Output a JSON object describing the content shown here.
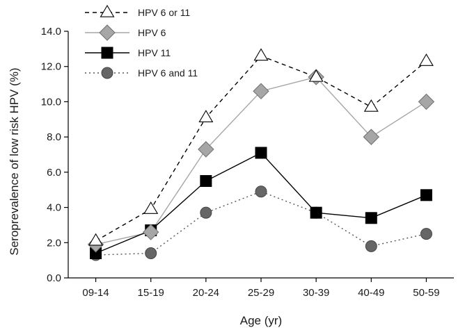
{
  "chart_data": {
    "type": "line",
    "title": "",
    "xlabel": "Age (yr)",
    "ylabel": "Seroprevalence of low risk HPV (%)",
    "categories": [
      "09-14",
      "15-19",
      "20-24",
      "25-29",
      "30-39",
      "40-49",
      "50-59"
    ],
    "ylim": [
      0,
      14
    ],
    "yticks": [
      "0.0",
      "2.0",
      "4.0",
      "6.0",
      "8.0",
      "10.0",
      "12.0",
      "14.0"
    ],
    "grid": false,
    "legend_position": "top-left",
    "series": [
      {
        "name": "HPV 6 or 11",
        "values": [
          2.1,
          3.9,
          9.1,
          12.6,
          11.4,
          9.7,
          12.3
        ],
        "marker": "triangle-open",
        "line_style": "dashed",
        "color": "#000000"
      },
      {
        "name": "HPV 6",
        "values": [
          1.9,
          2.6,
          7.3,
          10.6,
          11.4,
          8.0,
          10.0
        ],
        "marker": "diamond",
        "line_style": "solid",
        "color": "#a6a6a6",
        "marker_fill": "#a6a6a6"
      },
      {
        "name": "HPV 11",
        "values": [
          1.4,
          2.7,
          5.5,
          7.1,
          3.7,
          3.4,
          4.7
        ],
        "marker": "square",
        "line_style": "solid",
        "color": "#000000",
        "marker_fill": "#000000"
      },
      {
        "name": "HPV 6 and 11",
        "values": [
          1.3,
          1.4,
          3.7,
          4.9,
          3.7,
          1.8,
          2.5
        ],
        "marker": "circle",
        "line_style": "dotted",
        "color": "#555555",
        "marker_fill": "#666666"
      }
    ]
  }
}
